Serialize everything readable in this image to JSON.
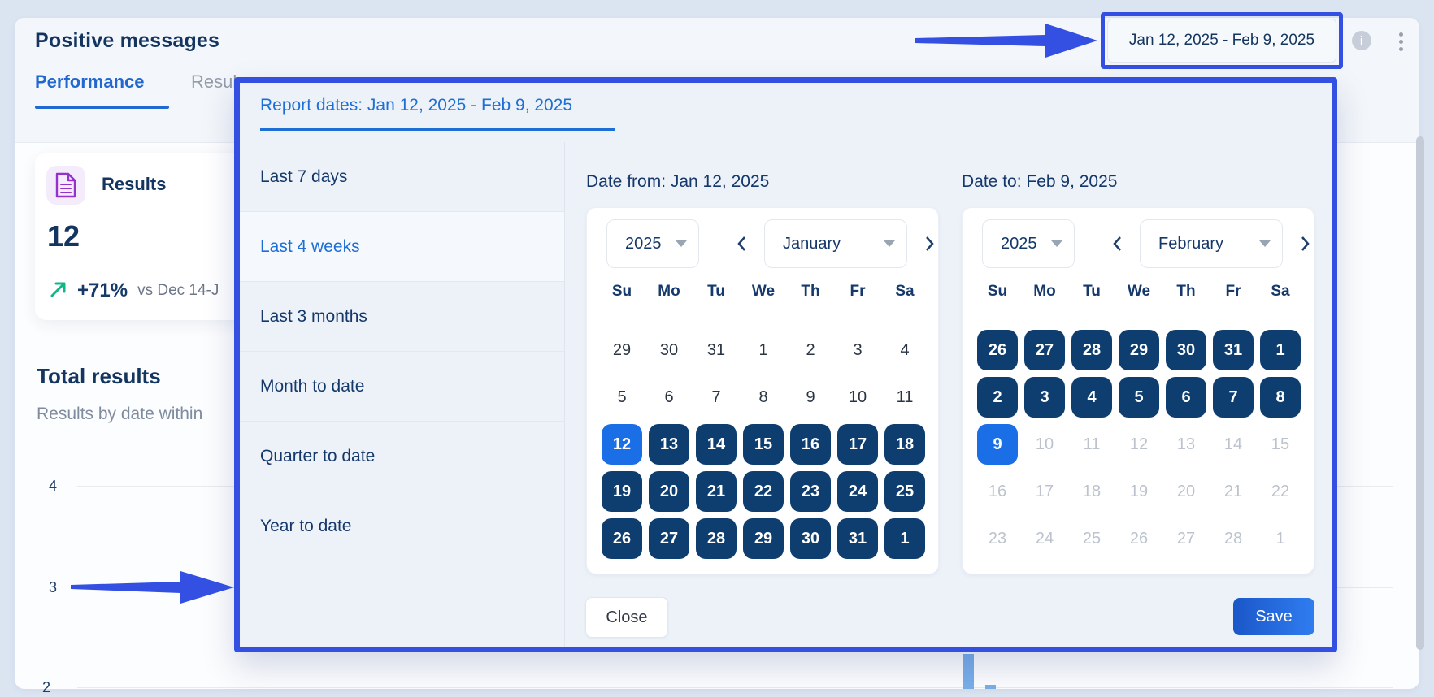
{
  "page": {
    "title": "Positive messages",
    "tabs": [
      {
        "label": "Performance",
        "active": true
      },
      {
        "label": "Resul",
        "active": false
      }
    ]
  },
  "header_controls": {
    "date_range_button": "Jan 12, 2025 - Feb 9, 2025",
    "icons": {
      "info": "info-icon",
      "menu": "kebab-menu-icon"
    },
    "info_glyph": "i"
  },
  "results_card": {
    "icon": "document-icon",
    "title": "Results",
    "value": "12",
    "delta": "+71%",
    "delta_icon": "trend-up-icon",
    "comparison": "vs Dec 14-J"
  },
  "total_results": {
    "title": "Total results",
    "subtitle": "Results by date within",
    "y_axis_labels": [
      "4",
      "3",
      "2"
    ]
  },
  "modal": {
    "title": "Report dates: Jan 12, 2025 - Feb 9, 2025",
    "presets": [
      {
        "label": "Last 7 days",
        "selected": false
      },
      {
        "label": "Last 4 weeks",
        "selected": true
      },
      {
        "label": "Last 3 months",
        "selected": false
      },
      {
        "label": "Month to date",
        "selected": false
      },
      {
        "label": "Quarter to date",
        "selected": false
      },
      {
        "label": "Year to date",
        "selected": false
      }
    ],
    "weekdays": [
      "Su",
      "Mo",
      "Tu",
      "We",
      "Th",
      "Fr",
      "Sa"
    ],
    "date_from": {
      "heading": "Date from: Jan 12, 2025",
      "year": "2025",
      "month": "January",
      "days": [
        {
          "d": "29",
          "s": "plain"
        },
        {
          "d": "30",
          "s": "plain"
        },
        {
          "d": "31",
          "s": "plain"
        },
        {
          "d": "1",
          "s": "plain"
        },
        {
          "d": "2",
          "s": "plain"
        },
        {
          "d": "3",
          "s": "plain"
        },
        {
          "d": "4",
          "s": "plain"
        },
        {
          "d": "5",
          "s": "plain"
        },
        {
          "d": "6",
          "s": "plain"
        },
        {
          "d": "7",
          "s": "plain"
        },
        {
          "d": "8",
          "s": "plain"
        },
        {
          "d": "9",
          "s": "plain"
        },
        {
          "d": "10",
          "s": "plain"
        },
        {
          "d": "11",
          "s": "plain"
        },
        {
          "d": "12",
          "s": "accent"
        },
        {
          "d": "13",
          "s": "dark"
        },
        {
          "d": "14",
          "s": "dark"
        },
        {
          "d": "15",
          "s": "dark"
        },
        {
          "d": "16",
          "s": "dark"
        },
        {
          "d": "17",
          "s": "dark"
        },
        {
          "d": "18",
          "s": "dark"
        },
        {
          "d": "19",
          "s": "dark"
        },
        {
          "d": "20",
          "s": "dark"
        },
        {
          "d": "21",
          "s": "dark"
        },
        {
          "d": "22",
          "s": "dark"
        },
        {
          "d": "23",
          "s": "dark"
        },
        {
          "d": "24",
          "s": "dark"
        },
        {
          "d": "25",
          "s": "dark"
        },
        {
          "d": "26",
          "s": "dark"
        },
        {
          "d": "27",
          "s": "dark"
        },
        {
          "d": "28",
          "s": "dark"
        },
        {
          "d": "29",
          "s": "dark"
        },
        {
          "d": "30",
          "s": "dark"
        },
        {
          "d": "31",
          "s": "dark"
        },
        {
          "d": "1",
          "s": "dark"
        }
      ]
    },
    "date_to": {
      "heading": "Date to: Feb 9, 2025",
      "year": "2025",
      "month": "February",
      "days": [
        {
          "d": "26",
          "s": "dark"
        },
        {
          "d": "27",
          "s": "dark"
        },
        {
          "d": "28",
          "s": "dark"
        },
        {
          "d": "29",
          "s": "dark"
        },
        {
          "d": "30",
          "s": "dark"
        },
        {
          "d": "31",
          "s": "dark"
        },
        {
          "d": "1",
          "s": "dark"
        },
        {
          "d": "2",
          "s": "dark"
        },
        {
          "d": "3",
          "s": "dark"
        },
        {
          "d": "4",
          "s": "dark"
        },
        {
          "d": "5",
          "s": "dark"
        },
        {
          "d": "6",
          "s": "dark"
        },
        {
          "d": "7",
          "s": "dark"
        },
        {
          "d": "8",
          "s": "dark"
        },
        {
          "d": "9",
          "s": "accent"
        },
        {
          "d": "10",
          "s": "muted"
        },
        {
          "d": "11",
          "s": "muted"
        },
        {
          "d": "12",
          "s": "muted"
        },
        {
          "d": "13",
          "s": "muted"
        },
        {
          "d": "14",
          "s": "muted"
        },
        {
          "d": "15",
          "s": "muted"
        },
        {
          "d": "16",
          "s": "muted"
        },
        {
          "d": "17",
          "s": "muted"
        },
        {
          "d": "18",
          "s": "muted"
        },
        {
          "d": "19",
          "s": "muted"
        },
        {
          "d": "20",
          "s": "muted"
        },
        {
          "d": "21",
          "s": "muted"
        },
        {
          "d": "22",
          "s": "muted"
        },
        {
          "d": "23",
          "s": "muted"
        },
        {
          "d": "24",
          "s": "muted"
        },
        {
          "d": "25",
          "s": "muted"
        },
        {
          "d": "26",
          "s": "muted"
        },
        {
          "d": "27",
          "s": "muted"
        },
        {
          "d": "28",
          "s": "muted"
        },
        {
          "d": "1",
          "s": "muted"
        }
      ]
    },
    "close_label": "Close",
    "save_label": "Save"
  },
  "colors": {
    "annotation_blue": "#3350e2",
    "accent_blue": "#1d6fd6",
    "navy_text": "#14355f",
    "selected_day_dark": "#0e3e70",
    "selected_day_accent": "#1a6ee6",
    "save_gradient": [
      "#1b57c9",
      "#2f7df0"
    ],
    "trend_green": "#12b586",
    "doc_icon_purple": "#9333c9",
    "chart_bar_blue": "#79aee9",
    "modal_bg": "#edf2f9",
    "page_bg": "#dbe4f1"
  }
}
